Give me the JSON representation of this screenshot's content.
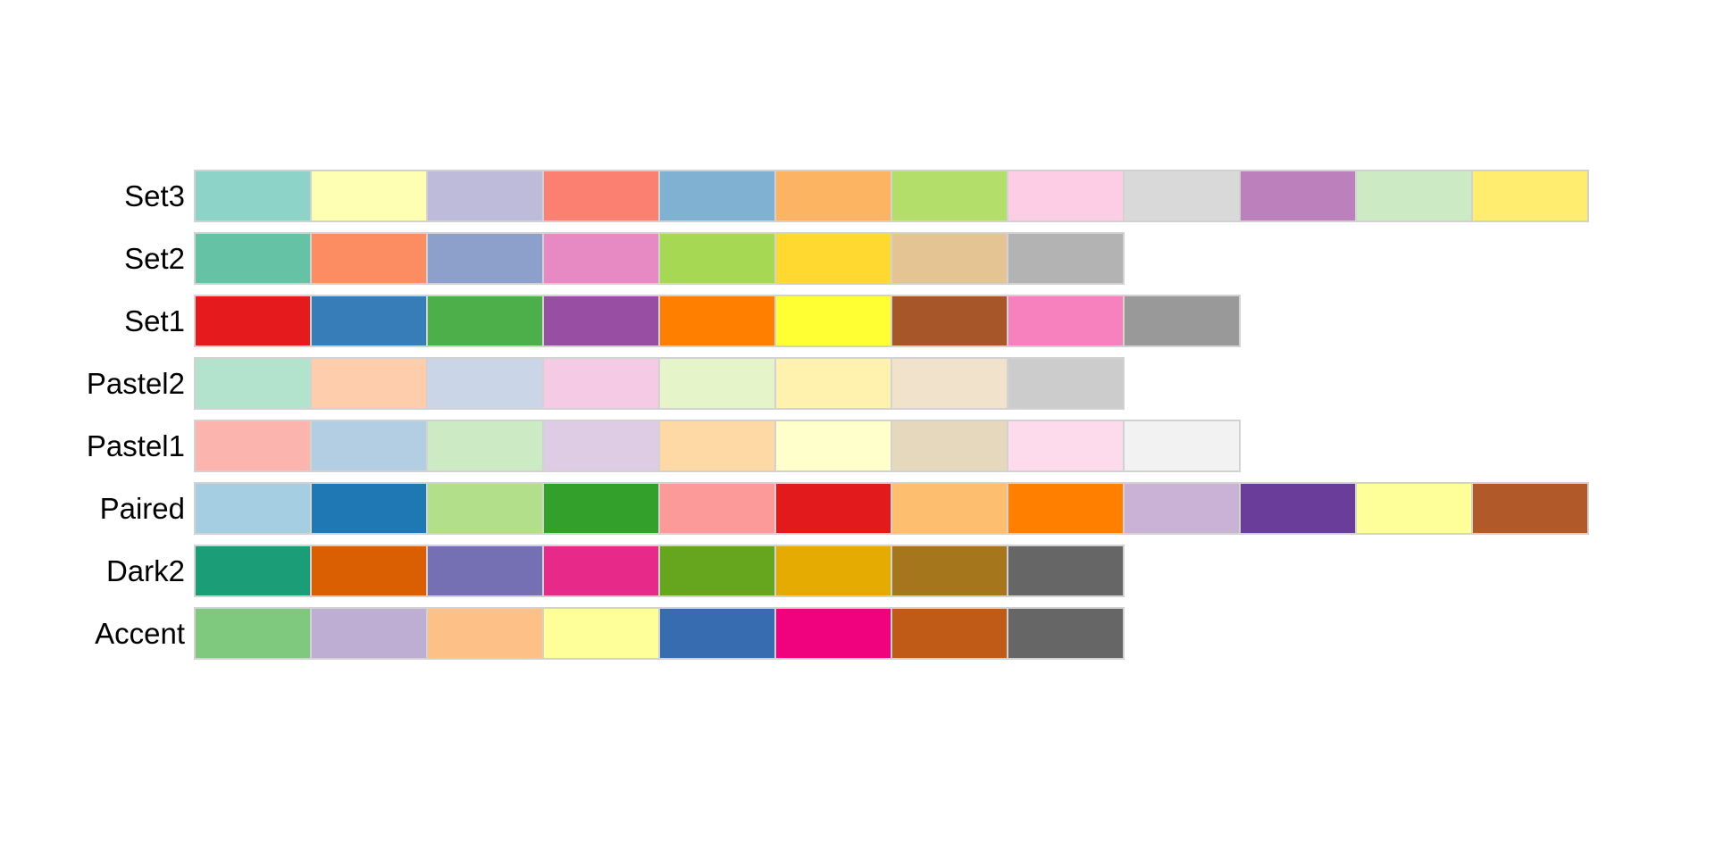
{
  "chart_data": {
    "type": "heatmap",
    "title": "",
    "description": "ColorBrewer qualitative colormap swatch rows, one strip per palette, one cell per discrete color",
    "categories": [
      "Set3",
      "Set2",
      "Set1",
      "Pastel2",
      "Pastel1",
      "Paired",
      "Dark2",
      "Accent"
    ],
    "series": [
      {
        "name": "Set3",
        "colors": [
          "#8dd3c7",
          "#ffffb3",
          "#bebada",
          "#fb8072",
          "#80b1d3",
          "#fdb462",
          "#b3de69",
          "#fccde5",
          "#d9d9d9",
          "#bc80bd",
          "#ccebc5",
          "#ffed6f"
        ]
      },
      {
        "name": "Set2",
        "colors": [
          "#66c2a5",
          "#fc8d62",
          "#8da0cb",
          "#e78ac3",
          "#a6d854",
          "#ffd92f",
          "#e5c494",
          "#b3b3b3"
        ]
      },
      {
        "name": "Set1",
        "colors": [
          "#e41a1c",
          "#377eb8",
          "#4daf4a",
          "#984ea3",
          "#ff7f00",
          "#ffff33",
          "#a65628",
          "#f781bf",
          "#999999"
        ]
      },
      {
        "name": "Pastel2",
        "colors": [
          "#b3e2cd",
          "#fdcdac",
          "#cbd5e8",
          "#f4cae4",
          "#e6f5c9",
          "#fff2ae",
          "#f1e2cc",
          "#cccccc"
        ]
      },
      {
        "name": "Pastel1",
        "colors": [
          "#fbb4ae",
          "#b3cde3",
          "#ccebc5",
          "#decbe4",
          "#fed9a6",
          "#ffffcc",
          "#e5d8bd",
          "#fddaec",
          "#f2f2f2"
        ]
      },
      {
        "name": "Paired",
        "colors": [
          "#a6cee3",
          "#1f78b4",
          "#b2df8a",
          "#33a02c",
          "#fb9a99",
          "#e31a1c",
          "#fdbf6f",
          "#ff7f00",
          "#cab2d6",
          "#6a3d9a",
          "#ffff99",
          "#b15928"
        ]
      },
      {
        "name": "Dark2",
        "colors": [
          "#1b9e77",
          "#d95f02",
          "#7570b3",
          "#e7298a",
          "#66a61e",
          "#e6ab02",
          "#a6761d",
          "#666666"
        ]
      },
      {
        "name": "Accent",
        "colors": [
          "#7fc97f",
          "#beaed4",
          "#fdc086",
          "#ffff99",
          "#386cb0",
          "#f0027f",
          "#bf5b17",
          "#666666"
        ]
      }
    ],
    "layout": {
      "legend_position": "none",
      "grid": false,
      "background": "#ffffff",
      "strip_border_color": "#d2d2d2",
      "label_color": "#000000"
    }
  }
}
